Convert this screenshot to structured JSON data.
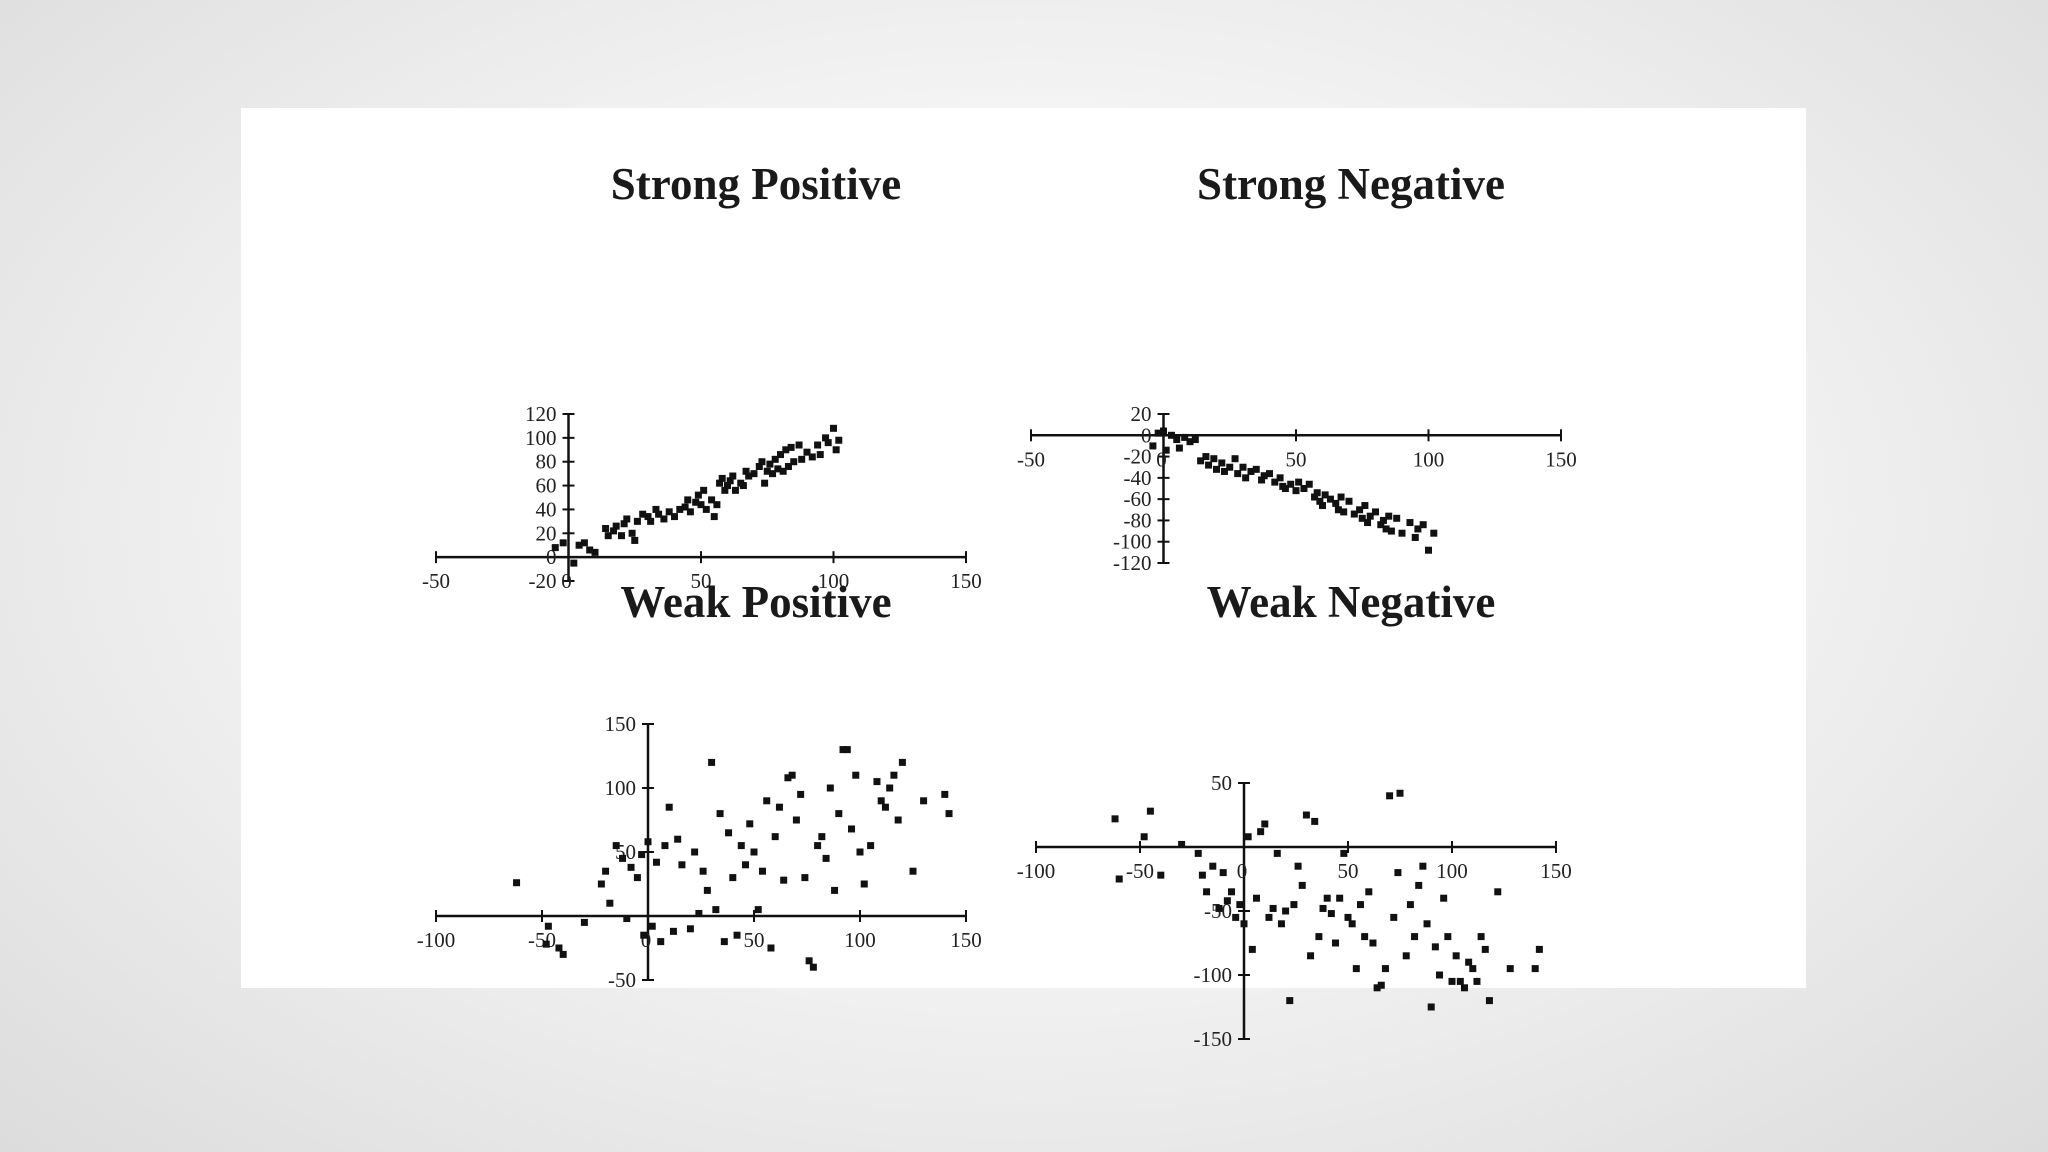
{
  "colors": {
    "ink": "#111111",
    "card": "#ffffff"
  },
  "chart_data": [
    {
      "type": "scatter",
      "title": "Strong Positive",
      "xlim": [
        -50,
        150
      ],
      "ylim": [
        -20,
        120
      ],
      "x_ticks": [
        -50,
        50,
        100,
        150
      ],
      "x_tick_labels": [
        "-50",
        "50",
        "100",
        "150"
      ],
      "y_ticks": [
        -20,
        0,
        20,
        40,
        60,
        80,
        100,
        120
      ],
      "y_tick_labels": [
        "-20",
        "0",
        "20",
        "40",
        "60",
        "80",
        "100",
        "120"
      ],
      "origin_label": "0",
      "points": [
        [
          -5,
          8
        ],
        [
          -2,
          12
        ],
        [
          2,
          -5
        ],
        [
          4,
          10
        ],
        [
          6,
          12
        ],
        [
          8,
          6
        ],
        [
          10,
          4
        ],
        [
          14,
          24
        ],
        [
          15,
          18
        ],
        [
          17,
          22
        ],
        [
          18,
          26
        ],
        [
          20,
          18
        ],
        [
          21,
          28
        ],
        [
          22,
          32
        ],
        [
          24,
          20
        ],
        [
          25,
          14
        ],
        [
          26,
          30
        ],
        [
          28,
          36
        ],
        [
          30,
          34
        ],
        [
          31,
          30
        ],
        [
          33,
          40
        ],
        [
          34,
          36
        ],
        [
          36,
          32
        ],
        [
          38,
          38
        ],
        [
          40,
          34
        ],
        [
          42,
          40
        ],
        [
          44,
          42
        ],
        [
          45,
          48
        ],
        [
          46,
          38
        ],
        [
          48,
          46
        ],
        [
          49,
          52
        ],
        [
          50,
          44
        ],
        [
          51,
          56
        ],
        [
          52,
          40
        ],
        [
          54,
          48
        ],
        [
          55,
          34
        ],
        [
          56,
          44
        ],
        [
          57,
          62
        ],
        [
          58,
          66
        ],
        [
          59,
          56
        ],
        [
          60,
          60
        ],
        [
          61,
          64
        ],
        [
          62,
          68
        ],
        [
          63,
          56
        ],
        [
          65,
          62
        ],
        [
          66,
          60
        ],
        [
          67,
          72
        ],
        [
          68,
          68
        ],
        [
          70,
          70
        ],
        [
          72,
          76
        ],
        [
          73,
          80
        ],
        [
          74,
          62
        ],
        [
          75,
          72
        ],
        [
          76,
          78
        ],
        [
          77,
          70
        ],
        [
          78,
          82
        ],
        [
          79,
          74
        ],
        [
          80,
          86
        ],
        [
          81,
          72
        ],
        [
          82,
          90
        ],
        [
          83,
          76
        ],
        [
          84,
          92
        ],
        [
          85,
          80
        ],
        [
          87,
          94
        ],
        [
          88,
          82
        ],
        [
          90,
          88
        ],
        [
          92,
          84
        ],
        [
          94,
          94
        ],
        [
          95,
          86
        ],
        [
          97,
          100
        ],
        [
          98,
          96
        ],
        [
          100,
          108
        ],
        [
          101,
          90
        ],
        [
          102,
          98
        ]
      ]
    },
    {
      "type": "scatter",
      "title": "Strong Negative",
      "xlim": [
        -50,
        150
      ],
      "ylim": [
        -120,
        20
      ],
      "x_ticks": [
        -50,
        50,
        100,
        150
      ],
      "x_tick_labels": [
        "-50",
        "50",
        "100",
        "150"
      ],
      "y_ticks": [
        -120,
        -100,
        -80,
        -60,
        -40,
        -20,
        0,
        20
      ],
      "y_tick_labels": [
        "-120",
        "-100",
        "-80",
        "-60",
        "-40",
        "-20",
        "0",
        "20"
      ],
      "origin_label": "0",
      "points": [
        [
          -4,
          -10
        ],
        [
          -2,
          2
        ],
        [
          0,
          4
        ],
        [
          1,
          -14
        ],
        [
          3,
          0
        ],
        [
          5,
          -4
        ],
        [
          6,
          -12
        ],
        [
          8,
          -2
        ],
        [
          10,
          -6
        ],
        [
          12,
          -4
        ],
        [
          14,
          -24
        ],
        [
          16,
          -20
        ],
        [
          17,
          -28
        ],
        [
          19,
          -22
        ],
        [
          20,
          -32
        ],
        [
          22,
          -26
        ],
        [
          23,
          -34
        ],
        [
          25,
          -30
        ],
        [
          27,
          -22
        ],
        [
          28,
          -36
        ],
        [
          30,
          -30
        ],
        [
          31,
          -40
        ],
        [
          33,
          -34
        ],
        [
          35,
          -32
        ],
        [
          37,
          -42
        ],
        [
          38,
          -38
        ],
        [
          40,
          -36
        ],
        [
          42,
          -44
        ],
        [
          44,
          -40
        ],
        [
          45,
          -48
        ],
        [
          46,
          -50
        ],
        [
          48,
          -46
        ],
        [
          50,
          -52
        ],
        [
          51,
          -44
        ],
        [
          53,
          -50
        ],
        [
          55,
          -46
        ],
        [
          57,
          -58
        ],
        [
          58,
          -54
        ],
        [
          59,
          -62
        ],
        [
          60,
          -66
        ],
        [
          61,
          -56
        ],
        [
          63,
          -60
        ],
        [
          65,
          -64
        ],
        [
          66,
          -70
        ],
        [
          67,
          -58
        ],
        [
          68,
          -72
        ],
        [
          70,
          -62
        ],
        [
          72,
          -74
        ],
        [
          74,
          -70
        ],
        [
          75,
          -78
        ],
        [
          76,
          -66
        ],
        [
          77,
          -82
        ],
        [
          78,
          -76
        ],
        [
          80,
          -72
        ],
        [
          82,
          -84
        ],
        [
          83,
          -80
        ],
        [
          84,
          -88
        ],
        [
          85,
          -76
        ],
        [
          86,
          -90
        ],
        [
          88,
          -78
        ],
        [
          90,
          -92
        ],
        [
          93,
          -82
        ],
        [
          95,
          -96
        ],
        [
          96,
          -88
        ],
        [
          98,
          -84
        ],
        [
          100,
          -108
        ],
        [
          102,
          -92
        ]
      ]
    },
    {
      "type": "scatter",
      "title": "Weak Positive",
      "xlim": [
        -100,
        150
      ],
      "ylim": [
        -50,
        150
      ],
      "x_ticks": [
        -100,
        -50,
        50,
        100,
        150
      ],
      "x_tick_labels": [
        "-100",
        "-50",
        "50",
        "100",
        "150"
      ],
      "y_ticks": [
        -50,
        50,
        100,
        150
      ],
      "y_tick_labels": [
        "-50",
        "50",
        "100",
        "150"
      ],
      "origin_label": "0",
      "points": [
        [
          -62,
          26
        ],
        [
          -48,
          -22
        ],
        [
          -47,
          -8
        ],
        [
          -42,
          -25
        ],
        [
          -40,
          -30
        ],
        [
          -30,
          -5
        ],
        [
          -22,
          25
        ],
        [
          -20,
          35
        ],
        [
          -18,
          10
        ],
        [
          -15,
          55
        ],
        [
          -12,
          45
        ],
        [
          -10,
          -2
        ],
        [
          -8,
          38
        ],
        [
          -5,
          30
        ],
        [
          -3,
          48
        ],
        [
          -2,
          -15
        ],
        [
          0,
          58
        ],
        [
          2,
          -8
        ],
        [
          4,
          42
        ],
        [
          6,
          -20
        ],
        [
          8,
          55
        ],
        [
          10,
          85
        ],
        [
          12,
          -12
        ],
        [
          14,
          60
        ],
        [
          16,
          40
        ],
        [
          20,
          -10
        ],
        [
          22,
          50
        ],
        [
          24,
          2
        ],
        [
          26,
          35
        ],
        [
          28,
          20
        ],
        [
          30,
          120
        ],
        [
          32,
          5
        ],
        [
          34,
          80
        ],
        [
          36,
          -20
        ],
        [
          38,
          65
        ],
        [
          40,
          30
        ],
        [
          42,
          -15
        ],
        [
          44,
          55
        ],
        [
          46,
          40
        ],
        [
          48,
          72
        ],
        [
          50,
          50
        ],
        [
          52,
          5
        ],
        [
          54,
          35
        ],
        [
          56,
          90
        ],
        [
          58,
          -25
        ],
        [
          60,
          62
        ],
        [
          62,
          85
        ],
        [
          64,
          28
        ],
        [
          66,
          108
        ],
        [
          68,
          110
        ],
        [
          70,
          75
        ],
        [
          72,
          95
        ],
        [
          74,
          30
        ],
        [
          76,
          -35
        ],
        [
          78,
          -40
        ],
        [
          80,
          55
        ],
        [
          82,
          62
        ],
        [
          84,
          45
        ],
        [
          86,
          100
        ],
        [
          88,
          20
        ],
        [
          90,
          80
        ],
        [
          92,
          130
        ],
        [
          94,
          130
        ],
        [
          96,
          68
        ],
        [
          98,
          110
        ],
        [
          100,
          50
        ],
        [
          102,
          25
        ],
        [
          105,
          55
        ],
        [
          108,
          105
        ],
        [
          110,
          90
        ],
        [
          112,
          85
        ],
        [
          114,
          100
        ],
        [
          116,
          110
        ],
        [
          118,
          75
        ],
        [
          120,
          120
        ],
        [
          125,
          35
        ],
        [
          130,
          90
        ],
        [
          140,
          95
        ],
        [
          142,
          80
        ]
      ]
    },
    {
      "type": "scatter",
      "title": "Weak Negative",
      "xlim": [
        -100,
        150
      ],
      "ylim": [
        -150,
        50
      ],
      "x_ticks": [
        -100,
        -50,
        50,
        100,
        150
      ],
      "x_tick_labels": [
        "-100",
        "-50",
        "50",
        "100",
        "150"
      ],
      "y_ticks": [
        -150,
        -100,
        -50,
        50
      ],
      "y_tick_labels": [
        "-150",
        "-100",
        "-50",
        "50"
      ],
      "origin_label": "0",
      "points": [
        [
          -62,
          22
        ],
        [
          -60,
          -25
        ],
        [
          -48,
          8
        ],
        [
          -45,
          28
        ],
        [
          -40,
          -22
        ],
        [
          -30,
          2
        ],
        [
          -22,
          -5
        ],
        [
          -20,
          -22
        ],
        [
          -18,
          -35
        ],
        [
          -15,
          -15
        ],
        [
          -12,
          -48
        ],
        [
          -10,
          -20
        ],
        [
          -8,
          -42
        ],
        [
          -6,
          -35
        ],
        [
          -4,
          -55
        ],
        [
          -2,
          -45
        ],
        [
          0,
          -60
        ],
        [
          2,
          8
        ],
        [
          4,
          -80
        ],
        [
          6,
          -40
        ],
        [
          8,
          12
        ],
        [
          10,
          18
        ],
        [
          12,
          -55
        ],
        [
          14,
          -48
        ],
        [
          16,
          -5
        ],
        [
          18,
          -60
        ],
        [
          20,
          -50
        ],
        [
          22,
          -120
        ],
        [
          24,
          -45
        ],
        [
          26,
          -15
        ],
        [
          28,
          -30
        ],
        [
          30,
          25
        ],
        [
          32,
          -85
        ],
        [
          34,
          20
        ],
        [
          36,
          -70
        ],
        [
          38,
          -48
        ],
        [
          40,
          -40
        ],
        [
          42,
          -52
        ],
        [
          44,
          -75
        ],
        [
          46,
          -40
        ],
        [
          48,
          -5
        ],
        [
          50,
          -55
        ],
        [
          52,
          -60
        ],
        [
          54,
          -95
        ],
        [
          56,
          -45
        ],
        [
          58,
          -70
        ],
        [
          60,
          -35
        ],
        [
          62,
          -75
        ],
        [
          64,
          -110
        ],
        [
          66,
          -108
        ],
        [
          68,
          -95
        ],
        [
          70,
          40
        ],
        [
          72,
          -55
        ],
        [
          74,
          -20
        ],
        [
          75,
          42
        ],
        [
          78,
          -85
        ],
        [
          80,
          -45
        ],
        [
          82,
          -70
        ],
        [
          84,
          -30
        ],
        [
          86,
          -15
        ],
        [
          88,
          -60
        ],
        [
          90,
          -125
        ],
        [
          92,
          -78
        ],
        [
          94,
          -100
        ],
        [
          96,
          -40
        ],
        [
          98,
          -70
        ],
        [
          100,
          -105
        ],
        [
          102,
          -85
        ],
        [
          104,
          -105
        ],
        [
          106,
          -110
        ],
        [
          108,
          -90
        ],
        [
          110,
          -95
        ],
        [
          112,
          -105
        ],
        [
          114,
          -70
        ],
        [
          116,
          -80
        ],
        [
          118,
          -120
        ],
        [
          122,
          -35
        ],
        [
          128,
          -95
        ],
        [
          140,
          -95
        ],
        [
          142,
          -80
        ]
      ]
    }
  ]
}
